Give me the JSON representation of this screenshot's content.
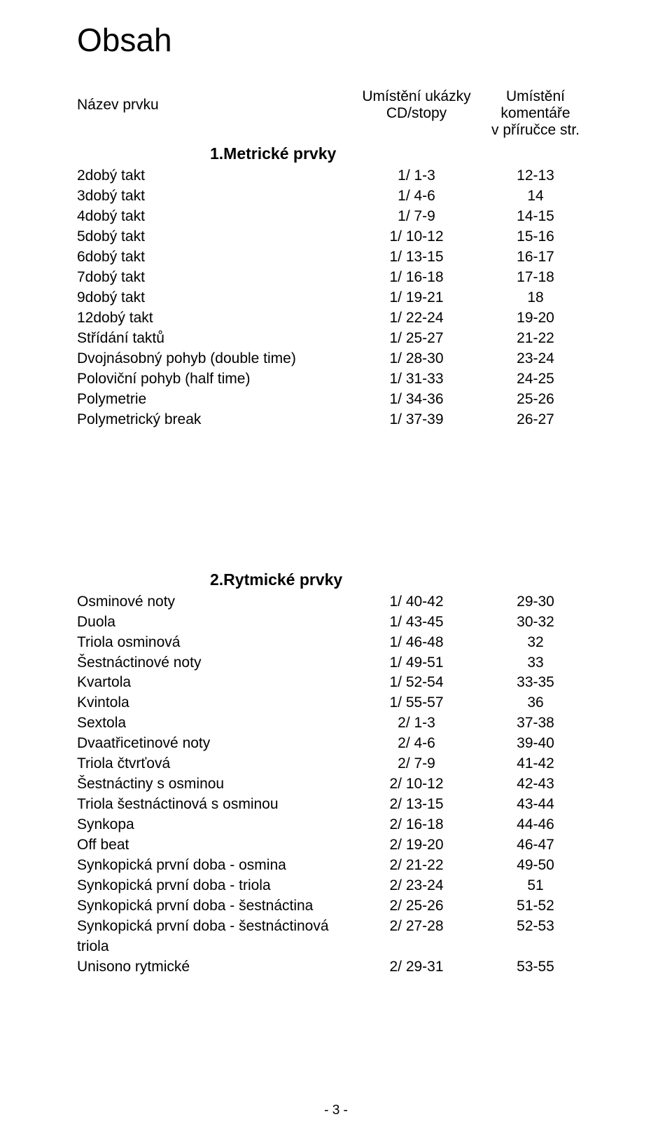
{
  "title": "Obsah",
  "header": {
    "col1": "Název prvku",
    "col2_line1": "Umístění ukázky",
    "col2_line2": "CD/stopy",
    "col3_line1": "Umístění",
    "col3_line2": "komentáře",
    "col3_line3": "v příručce str."
  },
  "section1": {
    "title": "1.Metrické prvky",
    "rows": [
      {
        "name": "2dobý takt",
        "cd": "1/ 1-3",
        "pg": "12-13"
      },
      {
        "name": "3dobý takt",
        "cd": "1/ 4-6",
        "pg": "14"
      },
      {
        "name": "4dobý takt",
        "cd": "1/ 7-9",
        "pg": "14-15"
      },
      {
        "name": "5dobý takt",
        "cd": "1/ 10-12",
        "pg": "15-16"
      },
      {
        "name": "6dobý takt",
        "cd": "1/ 13-15",
        "pg": "16-17"
      },
      {
        "name": "7dobý takt",
        "cd": "1/ 16-18",
        "pg": "17-18"
      },
      {
        "name": "9dobý takt",
        "cd": "1/ 19-21",
        "pg": "18"
      },
      {
        "name": "12dobý takt",
        "cd": "1/ 22-24",
        "pg": "19-20"
      },
      {
        "name": "Střídání taktů",
        "cd": "1/ 25-27",
        "pg": "21-22"
      },
      {
        "name": "Dvojnásobný pohyb (double time)",
        "cd": "1/ 28-30",
        "pg": "23-24"
      },
      {
        "name": "Poloviční pohyb (half time)",
        "cd": "1/ 31-33",
        "pg": "24-25"
      },
      {
        "name": "Polymetrie",
        "cd": "1/ 34-36",
        "pg": "25-26"
      },
      {
        "name": "Polymetrický break",
        "cd": "1/ 37-39",
        "pg": "26-27"
      }
    ]
  },
  "section2": {
    "title": "2.Rytmické prvky",
    "rows": [
      {
        "name": "Osminové noty",
        "cd": "1/ 40-42",
        "pg": "29-30"
      },
      {
        "name": "Duola",
        "cd": "1/ 43-45",
        "pg": "30-32"
      },
      {
        "name": "Triola osminová",
        "cd": "1/ 46-48",
        "pg": "32"
      },
      {
        "name": "Šestnáctinové noty",
        "cd": "1/ 49-51",
        "pg": "33"
      },
      {
        "name": "Kvartola",
        "cd": "1/ 52-54",
        "pg": "33-35"
      },
      {
        "name": "Kvintola",
        "cd": "1/ 55-57",
        "pg": "36"
      },
      {
        "name": "Sextola",
        "cd": "2/ 1-3",
        "pg": "37-38"
      },
      {
        "name": "Dvaatřicetinové noty",
        "cd": "2/ 4-6",
        "pg": "39-40"
      },
      {
        "name": "Triola čtvrťová",
        "cd": "2/ 7-9",
        "pg": "41-42"
      },
      {
        "name": "Šestnáctiny s osminou",
        "cd": "2/ 10-12",
        "pg": "42-43"
      },
      {
        "name": "Triola šestnáctinová s osminou",
        "cd": "2/ 13-15",
        "pg": "43-44"
      },
      {
        "name": "Synkopa",
        "cd": "2/ 16-18",
        "pg": "44-46"
      },
      {
        "name": "Off beat",
        "cd": "2/ 19-20",
        "pg": "46-47"
      },
      {
        "name": "Synkopická první doba - osmina",
        "cd": "2/ 21-22",
        "pg": "49-50"
      },
      {
        "name": "Synkopická první doba - triola",
        "cd": "2/ 23-24",
        "pg": "51"
      },
      {
        "name": "Synkopická první doba - šestnáctina",
        "cd": "2/ 25-26",
        "pg": "51-52"
      },
      {
        "name": "Synkopická první doba - šestnáctinová triola",
        "cd": "2/ 27-28",
        "pg": "52-53"
      },
      {
        "name": "Unisono rytmické",
        "cd": "2/ 29-31",
        "pg": "53-55"
      }
    ]
  },
  "footer": "- 3 -"
}
